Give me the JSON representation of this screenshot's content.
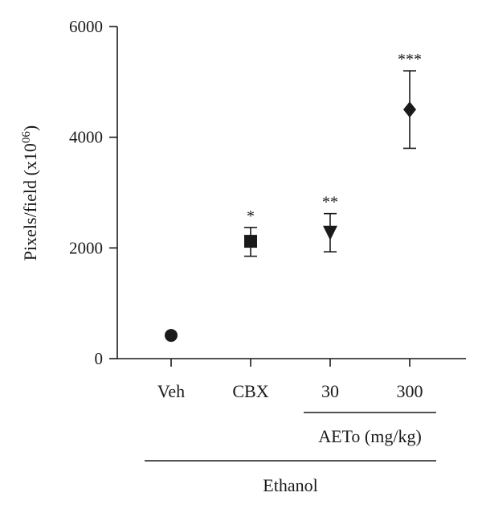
{
  "chart_data": {
    "type": "scatter",
    "ylabel": "Pixels/field (x10",
    "ylabel_sup": "06",
    "ylabel_close": ")",
    "ylim": [
      0,
      6000
    ],
    "yticks": [
      0,
      2000,
      4000,
      6000
    ],
    "categories": [
      "Veh",
      "CBX",
      "30",
      "300"
    ],
    "points": [
      {
        "category": "Veh",
        "value": 420,
        "err_low": 420,
        "err_high": 420,
        "marker": "circle",
        "significance": ""
      },
      {
        "category": "CBX",
        "value": 2120,
        "err_low": 1850,
        "err_high": 2370,
        "marker": "square",
        "significance": "*"
      },
      {
        "category": "30",
        "value": 2270,
        "err_low": 1930,
        "err_high": 2620,
        "marker": "triangle-down",
        "significance": "**"
      },
      {
        "category": "300",
        "value": 4500,
        "err_low": 3800,
        "err_high": 5200,
        "marker": "diamond",
        "significance": "***"
      }
    ],
    "groups": [
      {
        "label": "AETo (mg/kg)",
        "from": "30",
        "to": "300"
      },
      {
        "label": "Ethanol",
        "from": "Veh",
        "to": "300"
      }
    ],
    "grid": false,
    "legend": "none",
    "color": "#1a1a1a"
  }
}
